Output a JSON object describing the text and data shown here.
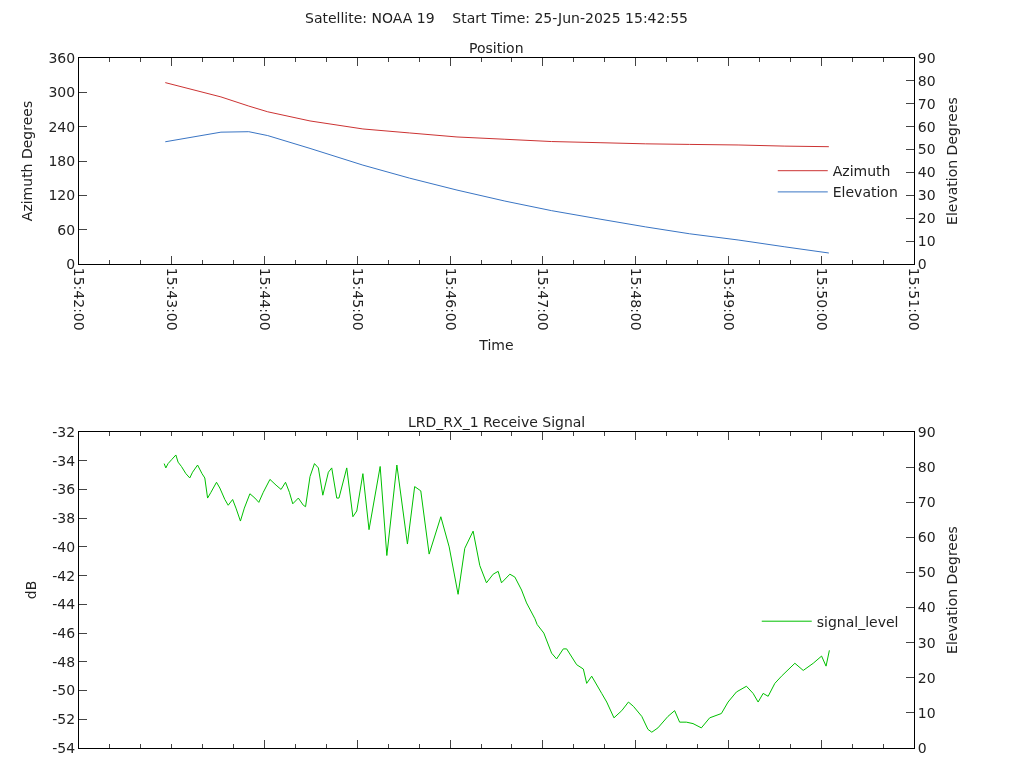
{
  "chart_data": [
    {
      "type": "line",
      "title": "Satellite: NOAA 19    Start Time: 25-Jun-2025 15:42:55",
      "subtitle": "Position",
      "xlabel": "Time",
      "ylabel": "Azimuth Degrees",
      "y2label": "Elevation Degrees",
      "xlim": [
        15.7,
        15.85
      ],
      "xticks": [
        {
          "value": 15.7,
          "label": "15:42:00"
        },
        {
          "value": 15.716667,
          "label": "15:43:00"
        },
        {
          "value": 15.733333,
          "label": "15:44:00"
        },
        {
          "value": 15.75,
          "label": "15:45:00"
        },
        {
          "value": 15.766667,
          "label": "15:46:00"
        },
        {
          "value": 15.783333,
          "label": "15:47:00"
        },
        {
          "value": 15.8,
          "label": "15:48:00"
        },
        {
          "value": 15.816667,
          "label": "15:49:00"
        },
        {
          "value": 15.833333,
          "label": "15:50:00"
        },
        {
          "value": 15.85,
          "label": "15:51:00"
        }
      ],
      "ylim": [
        0,
        360
      ],
      "yticks": [
        0,
        60,
        120,
        180,
        240,
        300,
        360
      ],
      "y2lim": [
        0,
        90
      ],
      "y2ticks": [
        0,
        10,
        20,
        30,
        40,
        50,
        60,
        70,
        80,
        90
      ],
      "x": [
        15.7155,
        15.7255,
        15.7305,
        15.7339,
        15.7415,
        15.751,
        15.7594,
        15.7679,
        15.7765,
        15.7849,
        15.7936,
        15.8018,
        15.8097,
        15.8184,
        15.8268,
        15.8347
      ],
      "series": [
        {
          "name": "Azimuth",
          "color": "#cc3333",
          "values": [
            317,
            292,
            276,
            266,
            250,
            236,
            229,
            222,
            218,
            214,
            212,
            210,
            209,
            208,
            206,
            205
          ]
        },
        {
          "name": "Elevation",
          "color": "#3a75c4",
          "axis": "y2",
          "values": [
            53.4,
            57.6,
            57.8,
            56.1,
            50.5,
            43.2,
            37.5,
            32.3,
            27.5,
            23.3,
            19.6,
            16.2,
            13.2,
            10.5,
            7.5,
            4.8
          ]
        }
      ],
      "legend": "right",
      "marker": "none",
      "line_style": "solid"
    },
    {
      "type": "line",
      "title": "LRD_RX_1 Receive Signal",
      "ylabel": "dB",
      "y2label": "Elevation Degrees",
      "xlim": [
        15.7,
        15.85
      ],
      "xticks": [
        {
          "value": 15.7,
          "label": null
        },
        {
          "value": 15.716667,
          "label": null
        },
        {
          "value": 15.733333,
          "label": null
        },
        {
          "value": 15.75,
          "label": null
        },
        {
          "value": 15.766667,
          "label": null
        },
        {
          "value": 15.783333,
          "label": null
        },
        {
          "value": 15.8,
          "label": null
        },
        {
          "value": 15.816667,
          "label": null
        },
        {
          "value": 15.833333,
          "label": null
        },
        {
          "value": 15.85,
          "label": null
        }
      ],
      "ylim": [
        -54,
        -32
      ],
      "yticks": [
        -54,
        -52,
        -50,
        -48,
        -46,
        -44,
        -42,
        -40,
        -38,
        -36,
        -34,
        -32
      ],
      "y2lim": [
        0,
        90
      ],
      "y2ticks": [
        0,
        10,
        20,
        30,
        40,
        50,
        60,
        70,
        80,
        90
      ],
      "tick_labels": "y",
      "series": [
        {
          "name": "signal_level",
          "color": "#00c000",
          "x": [
            15.7153,
            15.7156,
            15.716,
            15.7167,
            15.7174,
            15.7178,
            15.7184,
            15.7192,
            15.7199,
            15.7204,
            15.7213,
            15.7221,
            15.7226,
            15.7231,
            15.7237,
            15.7247,
            15.7253,
            15.7262,
            15.7268,
            15.7276,
            15.7282,
            15.729,
            15.7297,
            15.7307,
            15.7316,
            15.7323,
            15.7331,
            15.7343,
            15.7354,
            15.7363,
            15.7371,
            15.7378,
            15.7384,
            15.7394,
            15.7403,
            15.7407,
            15.7415,
            15.7423,
            15.743,
            15.7438,
            15.7448,
            15.7454,
            15.7463,
            15.7467,
            15.7481,
            15.7492,
            15.7499,
            15.751,
            15.7521,
            15.7541,
            15.7553,
            15.7571,
            15.759,
            15.7603,
            15.7614,
            15.7629,
            15.765,
            15.7665,
            15.7681,
            15.7693,
            15.7708,
            15.772,
            15.7732,
            15.7744,
            15.7753,
            15.7759,
            15.7774,
            15.7783,
            15.7795,
            15.7804,
            15.7819,
            15.7823,
            15.7835,
            15.7849,
            15.7858,
            15.787,
            15.7876,
            15.7894,
            15.7906,
            15.7912,
            15.7921,
            15.7939,
            15.7948,
            15.7961,
            15.7975,
            15.7987,
            15.7996,
            15.8011,
            15.8022,
            15.8029,
            15.804,
            15.8058,
            15.807,
            15.8079,
            15.8091,
            15.8103,
            15.8118,
            15.8133,
            15.8154,
            15.8166,
            15.8181,
            15.8199,
            15.8211,
            15.822,
            15.8229,
            15.8238,
            15.825,
            15.8262,
            15.8286,
            15.8301,
            15.8319,
            15.8334,
            15.8342,
            15.8348
          ],
          "values": [
            -34.2,
            -34.5,
            -34.2,
            -33.9,
            -33.6,
            -34.1,
            -34.4,
            -34.9,
            -35.2,
            -34.8,
            -34.3,
            -34.9,
            -35.2,
            -36.6,
            -36.2,
            -35.5,
            -35.9,
            -36.7,
            -37.1,
            -36.7,
            -37.3,
            -38.2,
            -37.3,
            -36.3,
            -36.6,
            -36.9,
            -36.2,
            -35.3,
            -35.7,
            -36.0,
            -35.5,
            -36.2,
            -37.0,
            -36.6,
            -37.1,
            -37.2,
            -35.1,
            -34.2,
            -34.5,
            -36.4,
            -34.8,
            -34.5,
            -36.6,
            -36.6,
            -34.5,
            -37.9,
            -37.5,
            -34.9,
            -38.8,
            -34.4,
            -40.6,
            -34.3,
            -39.8,
            -35.8,
            -36.1,
            -40.5,
            -37.9,
            -40.0,
            -43.3,
            -40.1,
            -38.9,
            -41.3,
            -42.5,
            -41.9,
            -41.7,
            -42.5,
            -41.9,
            -42.1,
            -43.0,
            -43.9,
            -45.0,
            -45.4,
            -46.0,
            -47.4,
            -47.8,
            -47.1,
            -47.1,
            -48.2,
            -48.5,
            -49.5,
            -49.0,
            -50.2,
            -50.8,
            -51.9,
            -51.4,
            -50.8,
            -51.1,
            -51.8,
            -52.7,
            -52.9,
            -52.6,
            -51.8,
            -51.4,
            -52.2,
            -52.2,
            -52.3,
            -52.6,
            -51.9,
            -51.6,
            -50.8,
            -50.1,
            -49.7,
            -50.2,
            -50.8,
            -50.2,
            -50.4,
            -49.5,
            -49.0,
            -48.1,
            -48.6,
            -48.1,
            -47.6,
            -48.3,
            -47.2
          ]
        }
      ],
      "legend": "right",
      "marker": "none",
      "line_style": "solid"
    }
  ]
}
